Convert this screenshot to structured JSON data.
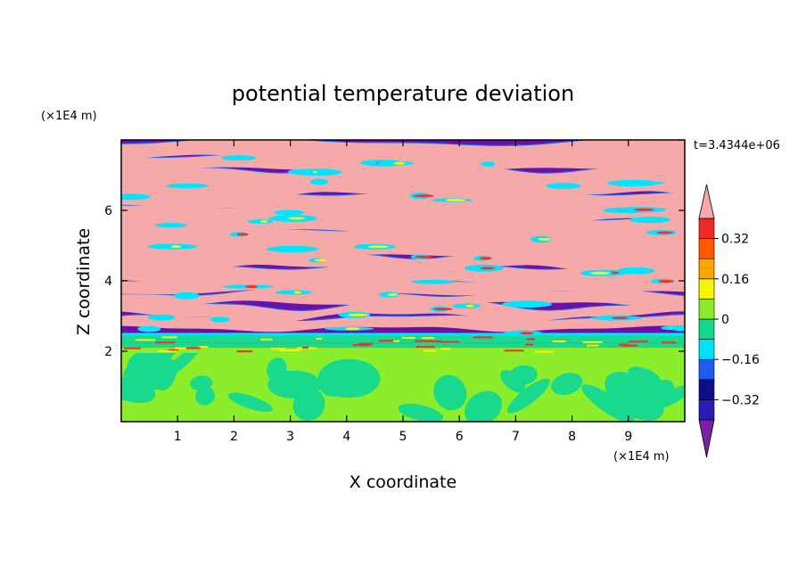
{
  "chart_data": {
    "type": "heatmap",
    "title": "potential temperature deviation",
    "xlabel": "X coordinate",
    "ylabel": "Z coordinate",
    "x_unit": "(×1E4 m)",
    "y_unit": "(×1E4 m)",
    "time_label": "t=3.4344e+06",
    "xlim": [
      0,
      10
    ],
    "ylim": [
      0,
      8
    ],
    "x_ticks": [
      "1",
      "2",
      "3",
      "4",
      "5",
      "6",
      "7",
      "8",
      "9"
    ],
    "y_ticks": [
      "2",
      "4",
      "6"
    ],
    "colorbar": {
      "tick_labels": [
        "0.32",
        "0.16",
        "0",
        "-0.16",
        "-0.32"
      ],
      "levels": [
        -0.4,
        -0.32,
        -0.24,
        -0.16,
        -0.08,
        0,
        0.08,
        0.16,
        0.24,
        0.32,
        0.4
      ],
      "colors": [
        "#7a1fa8",
        "#2a1ab8",
        "#0e0e8c",
        "#1f5cf0",
        "#00dfff",
        "#15d98a",
        "#8cec2a",
        "#f5f500",
        "#ffa500",
        "#ff5a00",
        "#f02828",
        "#f5a9a9"
      ],
      "extend": "both"
    },
    "colors": {
      "purple": "#6a12a8",
      "pink": "#f5a9a9",
      "lower_green": "#8ced2a",
      "lower_teal": "#18d98c",
      "cyan": "#00e5ff",
      "red": "#ff2a2a",
      "yellow": "#fff200"
    },
    "summary_layers": [
      {
        "z_range": [
          0,
          1.95
        ],
        "pattern": "mixed green/teal eddies"
      },
      {
        "z_range": [
          1.95,
          2.5
        ],
        "pattern": "thin green, teal and orange bands"
      },
      {
        "z_range": [
          2.5,
          8
        ],
        "pattern": "alternating purple and pink stripes with blue/cyan/red edges"
      }
    ]
  }
}
